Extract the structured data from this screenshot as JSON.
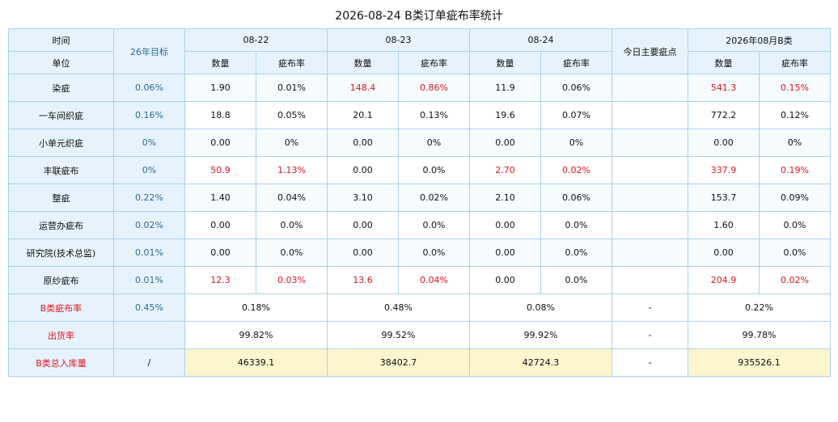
{
  "title": "2026-08-24 B类订单疵布率统计",
  "header": {
    "time": "时间",
    "unit": "单位",
    "target": "26年目标",
    "dates": [
      "08-22",
      "08-23",
      "08-24"
    ],
    "today_main": "今日主要疵点",
    "month": "2026年08月B类",
    "qty": "数量",
    "rate": "疵布率"
  },
  "rows": [
    {
      "label": "染疵",
      "target": "0.06%",
      "d1q": "1.90",
      "d1r": "0.01%",
      "d2q": "148.4",
      "d2r": "0.86%",
      "d3q": "11.9",
      "d3r": "0.06%",
      "main": "",
      "mq": "541.3",
      "mr": "0.15%"
    },
    {
      "label": "一车间织疵",
      "target": "0.16%",
      "d1q": "18.8",
      "d1r": "0.05%",
      "d2q": "20.1",
      "d2r": "0.13%",
      "d3q": "19.6",
      "d3r": "0.07%",
      "main": "",
      "mq": "772.2",
      "mr": "0.12%"
    },
    {
      "label": "小单元织疵",
      "target": "0%",
      "d1q": "0.00",
      "d1r": "0%",
      "d2q": "0.00",
      "d2r": "0%",
      "d3q": "0.00",
      "d3r": "0%",
      "main": "",
      "mq": "0.00",
      "mr": "0%"
    },
    {
      "label": "丰联疵布",
      "target": "0%",
      "d1q": "50.9",
      "d1r": "1.13%",
      "d2q": "0.00",
      "d2r": "0.0%",
      "d3q": "2.70",
      "d3r": "0.02%",
      "main": "",
      "mq": "337.9",
      "mr": "0.19%"
    },
    {
      "label": "整疵",
      "target": "0.22%",
      "d1q": "1.40",
      "d1r": "0.04%",
      "d2q": "3.10",
      "d2r": "0.02%",
      "d3q": "2.10",
      "d3r": "0.06%",
      "main": "",
      "mq": "153.7",
      "mr": "0.09%"
    },
    {
      "label": "运营办疵布",
      "target": "0.02%",
      "d1q": "0.00",
      "d1r": "0.0%",
      "d2q": "0.00",
      "d2r": "0.0%",
      "d3q": "0.00",
      "d3r": "0.0%",
      "main": "",
      "mq": "1.60",
      "mr": "0.0%"
    },
    {
      "label": "研究院(技术总监)",
      "target": "0.01%",
      "d1q": "0.00",
      "d1r": "0.0%",
      "d2q": "0.00",
      "d2r": "0.0%",
      "d3q": "0.00",
      "d3r": "0.0%",
      "main": "",
      "mq": "0.00",
      "mr": "0.0%"
    },
    {
      "label": "原纱疵布",
      "target": "0.01%",
      "d1q": "12.3",
      "d1r": "0.03%",
      "d2q": "13.6",
      "d2r": "0.04%",
      "d3q": "0.00",
      "d3r": "0.0%",
      "main": "",
      "mq": "204.9",
      "mr": "0.02%"
    }
  ],
  "summary": {
    "brate": {
      "label": "B类疵布率",
      "target": "0.45%",
      "d1": "0.18%",
      "d2": "0.48%",
      "d3": "0.08%",
      "main": "-",
      "month": "0.22%"
    },
    "ship": {
      "label": "出货率",
      "target": "",
      "d1": "99.82%",
      "d2": "99.52%",
      "d3": "99.92%",
      "main": "-",
      "month": "99.78%"
    },
    "stock": {
      "label": "B类总入库量",
      "target": "/",
      "d1": "46339.1",
      "d2": "38402.7",
      "d3": "42724.3",
      "main": "-",
      "month": "935526.1"
    }
  },
  "colors": {
    "highlight_red": "#e0141f",
    "target_blue": "#2f6a93",
    "header_bg": "#e6f3fd",
    "yellow_bg": "#fdf5cd",
    "border": "#a9d3ea"
  }
}
